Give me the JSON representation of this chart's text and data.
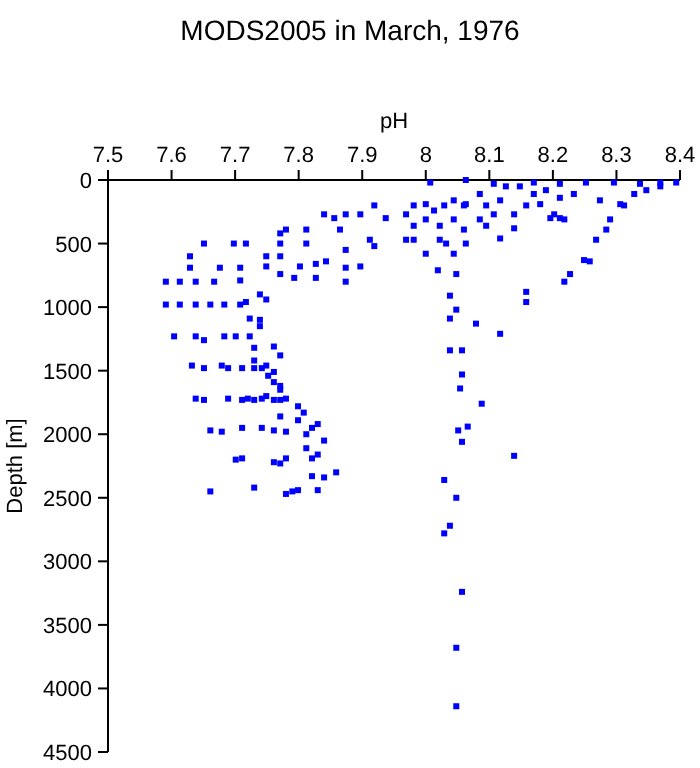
{
  "chart_data": {
    "type": "scatter",
    "title": "MODS2005 in March, 1976",
    "xlabel": "pH",
    "ylabel": "Depth [m]",
    "xlim": [
      7.5,
      8.4
    ],
    "xticks": [
      7.5,
      7.6,
      7.7,
      7.8,
      7.9,
      8,
      8.1,
      8.2,
      8.3,
      8.4
    ],
    "ylim": [
      4500,
      0
    ],
    "yticks": [
      0,
      500,
      1000,
      1500,
      2000,
      2500,
      3000,
      3500,
      4000,
      4500
    ],
    "grid": false,
    "marker": "square",
    "series": [
      {
        "color": "#0000ff",
        "x": [
          8.007,
          8.063,
          8.107,
          8.126,
          8.17,
          8.211,
          8.252,
          8.296,
          8.337,
          8.369,
          8.394,
          8.347,
          8.369,
          8.328,
          8.306,
          8.274,
          8.233,
          8.211,
          8.189,
          8.18,
          8.158,
          8.202,
          8.211,
          8.139,
          8.117,
          8.085,
          8.063,
          8.044,
          8.0,
          7.981,
          7.969,
          8.013,
          8.029,
          8.06,
          8.095,
          8.107,
          8.085,
          8.044,
          8.0,
          7.981,
          8.022,
          8.06,
          8.095,
          8.139,
          8.117,
          8.063,
          8.032,
          7.981,
          8.0,
          8.022,
          8.019,
          8.044,
          8.048,
          8.038,
          8.038,
          8.048,
          8.079,
          8.117,
          8.158,
          8.158,
          8.312,
          8.29,
          8.284,
          8.268,
          8.249,
          8.258,
          8.227,
          8.218,
          8.218,
          8.196,
          8.17,
          8.148,
          7.919,
          7.937,
          7.897,
          7.874,
          7.856,
          7.84,
          7.865,
          7.812,
          7.78,
          7.771,
          7.771,
          7.812,
          7.874,
          7.912,
          7.919,
          7.969,
          7.843,
          7.827,
          7.802,
          7.771,
          7.749,
          7.717,
          7.698,
          7.651,
          7.629,
          7.629,
          7.676,
          7.708,
          7.749,
          7.771,
          7.793,
          7.827,
          7.874,
          7.897,
          7.874,
          7.591,
          7.613,
          7.638,
          7.667,
          7.708,
          7.739,
          7.717,
          7.749,
          7.591,
          7.613,
          7.638,
          7.661,
          7.683,
          7.708,
          7.723,
          7.739,
          7.604,
          7.638,
          7.683,
          7.701,
          7.723,
          7.739,
          7.651,
          7.73,
          7.761,
          7.771,
          7.73,
          7.632,
          7.651,
          7.679,
          7.689,
          7.711,
          7.73,
          7.742,
          7.749,
          7.761,
          7.752,
          7.761,
          7.771,
          7.771,
          7.638,
          7.651,
          7.689,
          7.711,
          7.72,
          7.73,
          7.742,
          7.749,
          7.761,
          7.771,
          7.78,
          7.799,
          7.808,
          7.799,
          7.771,
          7.83,
          7.821,
          7.812,
          7.84,
          7.661,
          7.679,
          7.711,
          7.742,
          7.761,
          7.78,
          7.812,
          7.83,
          7.821,
          7.78,
          7.761,
          7.771,
          7.711,
          7.701,
          7.859,
          7.84,
          7.821,
          7.83,
          7.799,
          7.79,
          7.78,
          7.73,
          7.661,
          8.057,
          8.038,
          8.057,
          8.054,
          8.088,
          8.066,
          8.051,
          8.057,
          8.139,
          8.029,
          8.048,
          8.038,
          8.029,
          8.057,
          8.048,
          8.048
        ],
        "values": [
          20,
          0,
          30,
          50,
          20,
          30,
          20,
          20,
          30,
          20,
          20,
          80,
          50,
          110,
          190,
          160,
          110,
          140,
          80,
          190,
          200,
          270,
          300,
          270,
          160,
          110,
          190,
          160,
          190,
          200,
          270,
          240,
          200,
          200,
          200,
          270,
          310,
          310,
          310,
          360,
          360,
          390,
          360,
          380,
          460,
          500,
          500,
          470,
          580,
          470,
          710,
          580,
          740,
          910,
          1090,
          1020,
          1130,
          1210,
          880,
          960,
          200,
          310,
          390,
          470,
          630,
          640,
          740,
          800,
          310,
          300,
          110,
          50,
          200,
          300,
          270,
          270,
          300,
          270,
          390,
          390,
          390,
          420,
          500,
          500,
          550,
          470,
          520,
          470,
          640,
          660,
          680,
          600,
          600,
          500,
          500,
          500,
          600,
          690,
          690,
          690,
          680,
          740,
          770,
          770,
          690,
          680,
          800,
          800,
          800,
          800,
          800,
          790,
          900,
          960,
          940,
          980,
          980,
          980,
          980,
          980,
          980,
          1090,
          1100,
          1230,
          1230,
          1230,
          1230,
          1230,
          1150,
          1260,
          1320,
          1310,
          1380,
          1420,
          1460,
          1480,
          1460,
          1480,
          1480,
          1480,
          1480,
          1460,
          1510,
          1540,
          1590,
          1620,
          1650,
          1720,
          1730,
          1720,
          1730,
          1720,
          1730,
          1720,
          1700,
          1730,
          1730,
          1720,
          1780,
          1830,
          1890,
          1860,
          1920,
          1950,
          2000,
          2050,
          1970,
          1980,
          1950,
          1950,
          1970,
          1980,
          2110,
          2160,
          2190,
          2190,
          2220,
          2230,
          2190,
          2200,
          2300,
          2340,
          2330,
          2440,
          2440,
          2450,
          2470,
          2420,
          2450,
          1340,
          1340,
          1530,
          1640,
          1760,
          1940,
          1970,
          2060,
          2170,
          2360,
          2500,
          2720,
          2780,
          3240,
          3680,
          4140
        ]
      }
    ]
  }
}
